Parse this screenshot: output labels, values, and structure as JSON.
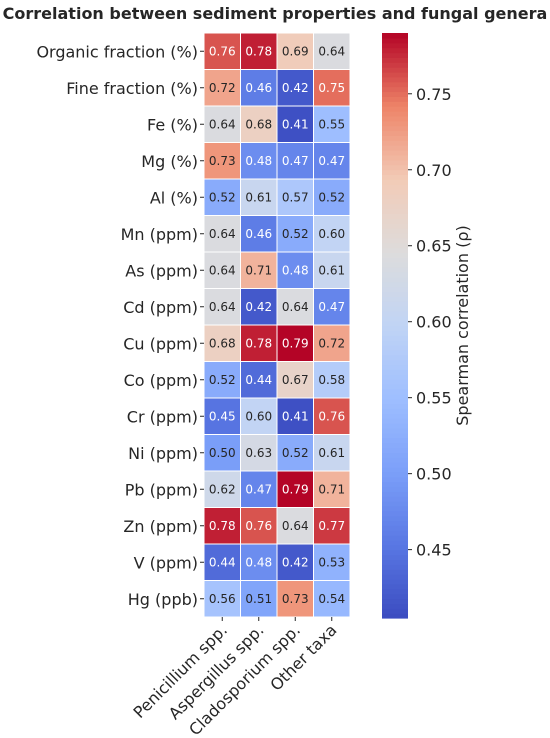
{
  "chart_data": {
    "type": "heatmap",
    "title": "Correlation between sediment properties and fungal genera",
    "rows": [
      "Organic fraction (%)",
      "Fine fraction (%)",
      "Fe (%)",
      "Mg (%)",
      "Al (%)",
      "Mn (ppm)",
      "As (ppm)",
      "Cd (ppm)",
      "Cu (ppm)",
      "Co (ppm)",
      "Cr (ppm)",
      "Ni (ppm)",
      "Pb (ppm)",
      "Zn (ppm)",
      "V (ppm)",
      "Hg (ppb)"
    ],
    "columns": [
      "Penicillium spp.",
      "Aspergillus spp.",
      "Cladosporium spp.",
      "Other taxa"
    ],
    "values": [
      [
        0.76,
        0.78,
        0.69,
        0.64
      ],
      [
        0.72,
        0.46,
        0.42,
        0.75
      ],
      [
        0.64,
        0.68,
        0.41,
        0.55
      ],
      [
        0.73,
        0.48,
        0.47,
        0.47
      ],
      [
        0.52,
        0.61,
        0.57,
        0.52
      ],
      [
        0.64,
        0.46,
        0.52,
        0.6
      ],
      [
        0.64,
        0.71,
        0.48,
        0.61
      ],
      [
        0.64,
        0.42,
        0.64,
        0.47
      ],
      [
        0.68,
        0.78,
        0.79,
        0.72
      ],
      [
        0.52,
        0.44,
        0.67,
        0.58
      ],
      [
        0.45,
        0.6,
        0.41,
        0.76
      ],
      [
        0.5,
        0.63,
        0.52,
        0.61
      ],
      [
        0.62,
        0.47,
        0.79,
        0.71
      ],
      [
        0.78,
        0.76,
        0.64,
        0.77
      ],
      [
        0.44,
        0.48,
        0.42,
        0.53
      ],
      [
        0.56,
        0.51,
        0.73,
        0.54
      ]
    ],
    "colorbar": {
      "label": "Spearman correlation (ρ)",
      "min": 0.405,
      "max": 0.79,
      "ticks": [
        "0.45",
        "0.50",
        "0.55",
        "0.60",
        "0.65",
        "0.70",
        "0.75"
      ],
      "colormap": "coolwarm"
    }
  }
}
